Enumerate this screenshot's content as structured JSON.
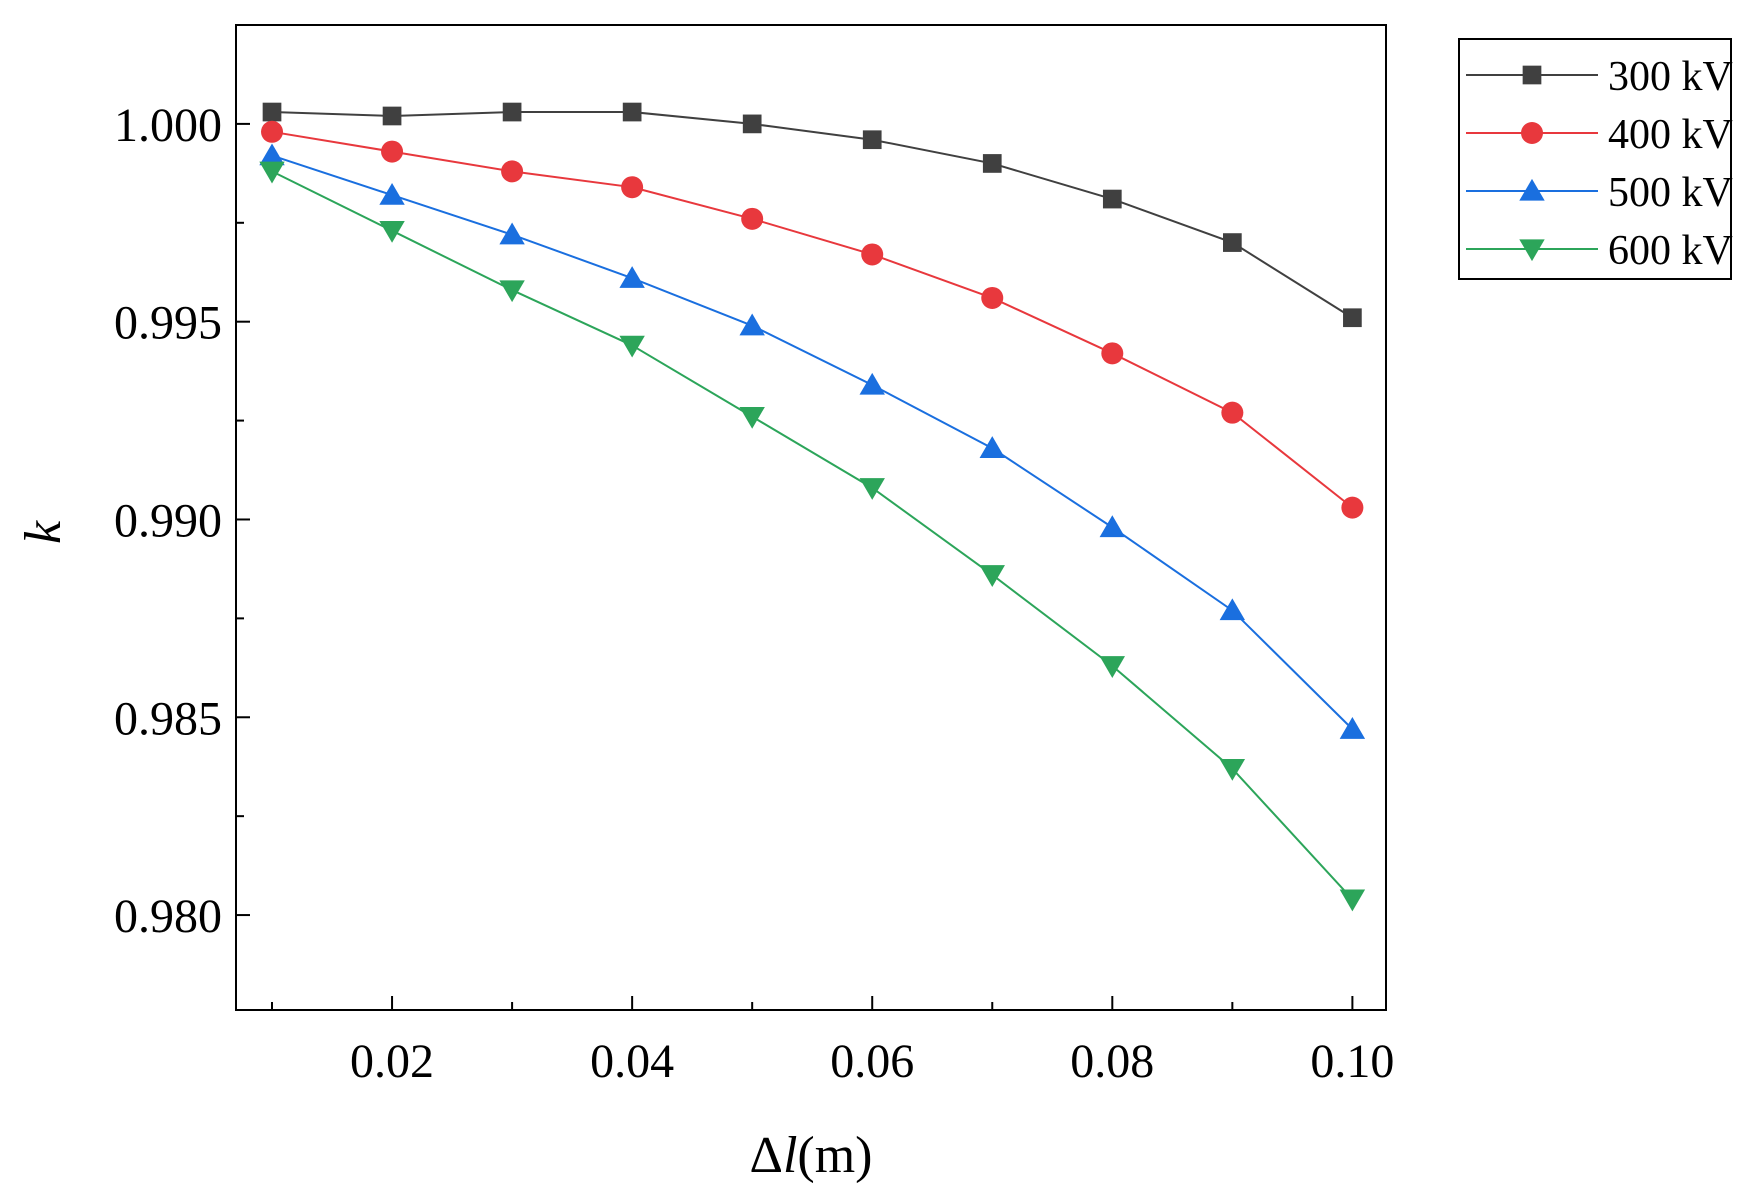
{
  "chart_data": {
    "type": "line",
    "title": "",
    "xlabel_parts": [
      {
        "text": "Δ",
        "italic": false
      },
      {
        "text": "l",
        "italic": true
      },
      {
        "text": "(m)",
        "italic": false
      }
    ],
    "ylabel": "k",
    "xlim": [
      0.007,
      0.1028
    ],
    "ylim": [
      0.9776,
      1.0025
    ],
    "x_ticks": [
      0.02,
      0.04,
      0.06,
      0.08,
      0.1
    ],
    "x_tick_labels": [
      "0.02",
      "0.04",
      "0.06",
      "0.08",
      "0.10"
    ],
    "x_minor_ticks": [
      0.01,
      0.03,
      0.05,
      0.07,
      0.09
    ],
    "y_ticks": [
      0.98,
      0.985,
      0.99,
      0.995,
      1.0
    ],
    "y_tick_labels": [
      "0.980",
      "0.985",
      "0.990",
      "0.995",
      "1.000"
    ],
    "y_minor_ticks": [
      0.9825,
      0.9875,
      0.9925,
      0.9975
    ],
    "grid": false,
    "legend_position": "outside-top-right",
    "x": [
      0.01,
      0.02,
      0.03,
      0.04,
      0.05,
      0.06,
      0.07,
      0.08,
      0.09,
      0.1
    ],
    "series": [
      {
        "name": "300 kV",
        "color": "#404040",
        "marker": "square",
        "values": [
          1.0003,
          1.0002,
          1.0003,
          1.0003,
          1.0,
          0.9996,
          0.999,
          0.9981,
          0.997,
          0.9951
        ]
      },
      {
        "name": "400 kV",
        "color": "#e8383d",
        "marker": "circle",
        "values": [
          0.9998,
          0.9993,
          0.9988,
          0.9984,
          0.9976,
          0.9967,
          0.9956,
          0.9942,
          0.9927,
          0.9903
        ]
      },
      {
        "name": "500 kV",
        "color": "#1a6fdf",
        "marker": "triangle-up",
        "values": [
          0.9992,
          0.9982,
          0.9972,
          0.9961,
          0.9949,
          0.9934,
          0.9918,
          0.9898,
          0.9877,
          0.9847
        ]
      },
      {
        "name": "600 kV",
        "color": "#2ca55a",
        "marker": "triangle-down",
        "values": [
          0.9988,
          0.9973,
          0.9958,
          0.9944,
          0.9926,
          0.9908,
          0.9886,
          0.9863,
          0.9837,
          0.9804
        ]
      }
    ]
  }
}
